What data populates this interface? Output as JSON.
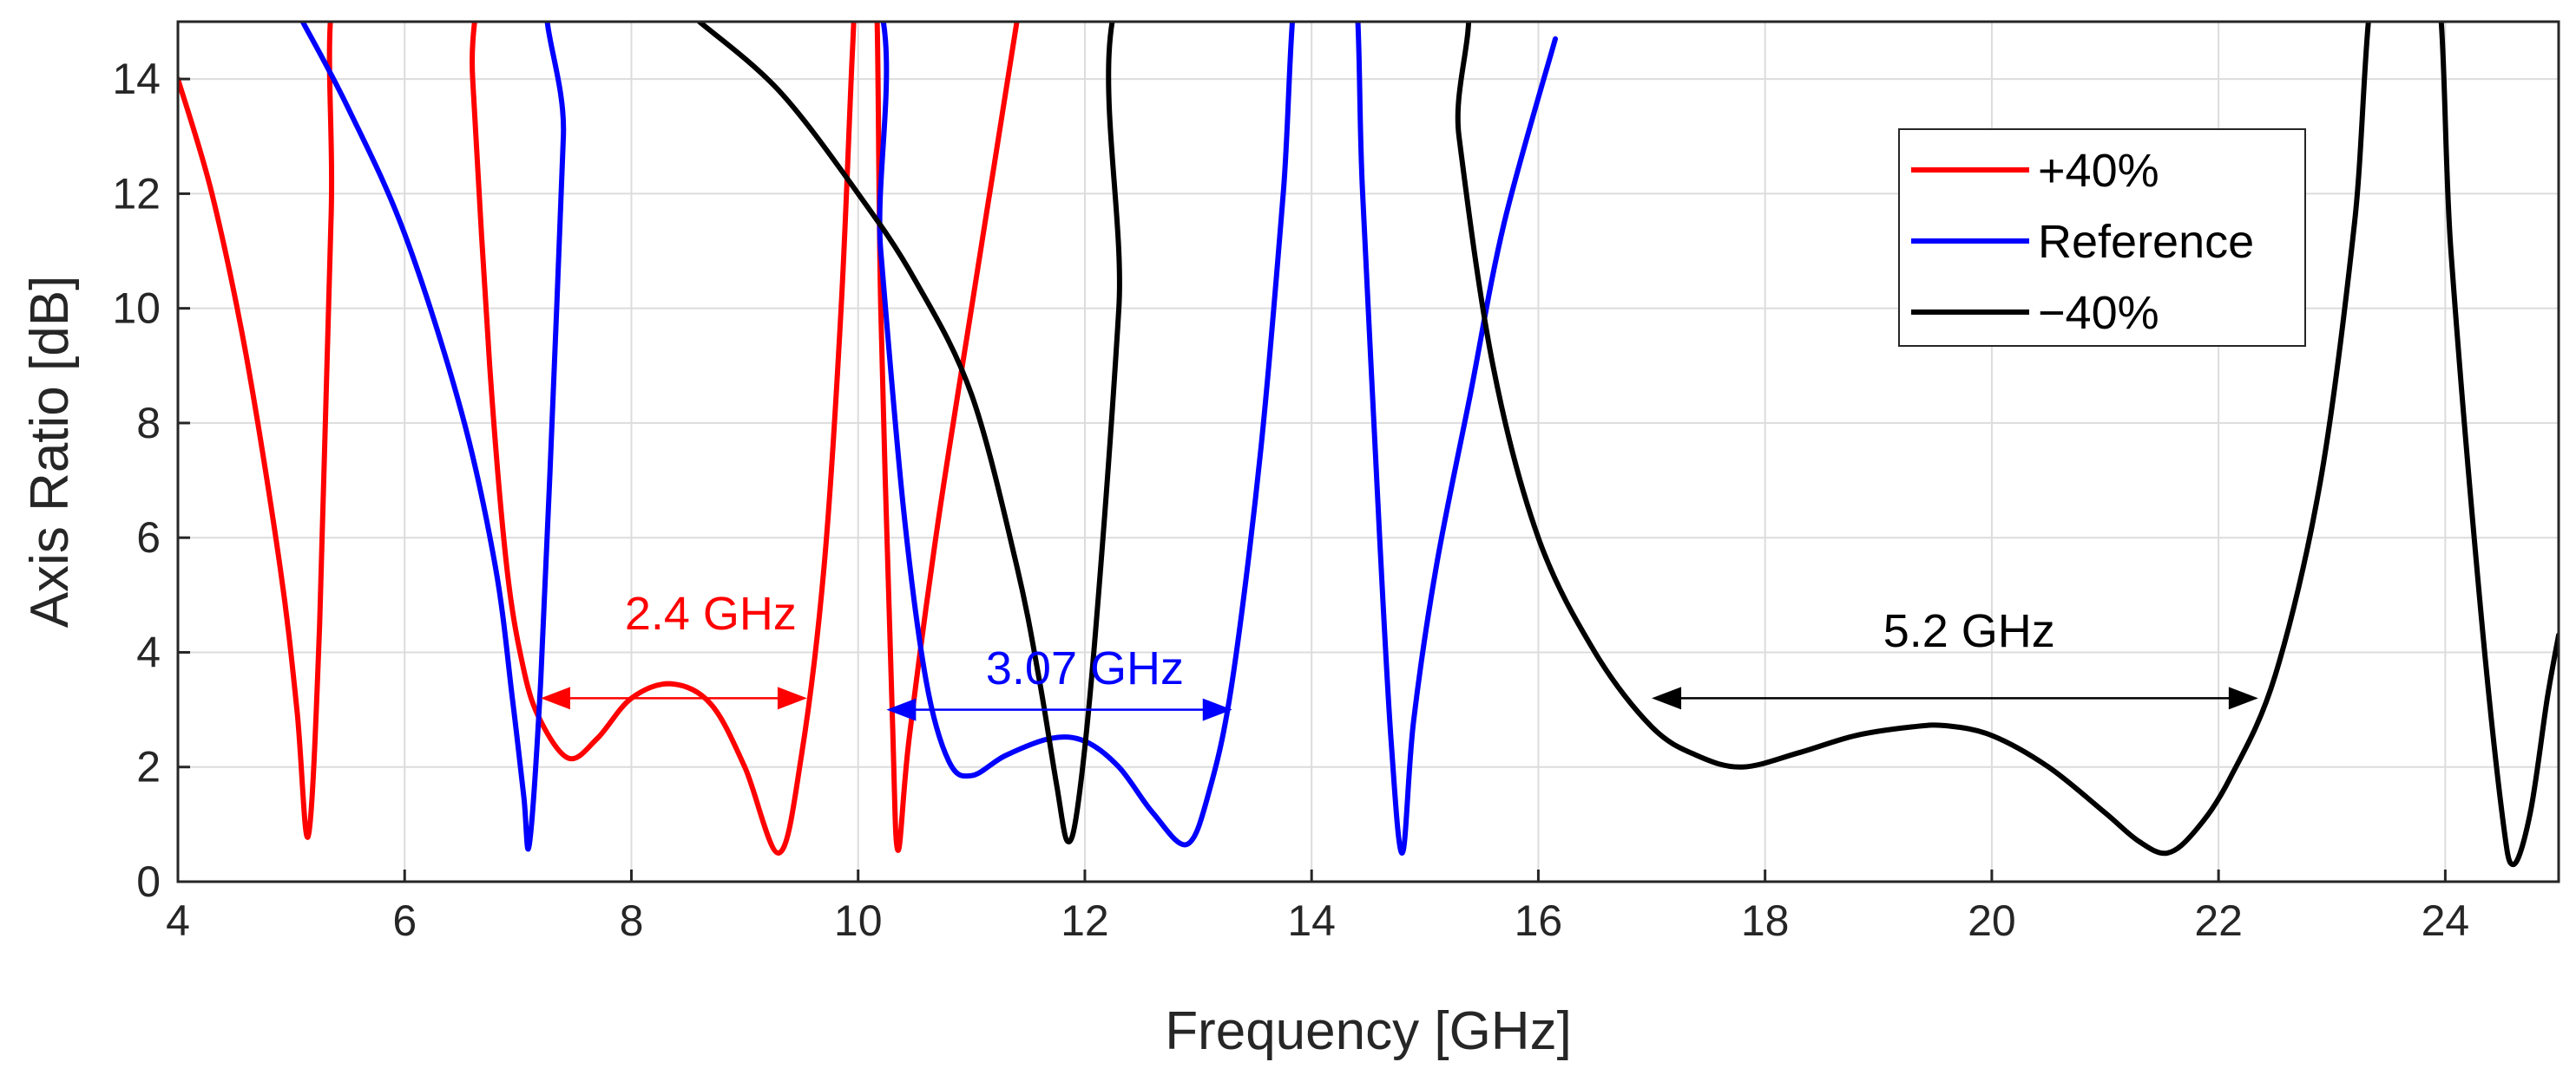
{
  "chart_data": {
    "type": "line",
    "title": "",
    "xlabel": "Frequency [GHz]",
    "ylabel": "Axis Ratio [dB]",
    "xlim": [
      4,
      25
    ],
    "ylim": [
      0,
      15
    ],
    "grid": true,
    "x_ticks": [
      "4",
      "6",
      "8",
      "10",
      "12",
      "14",
      "16",
      "18",
      "20",
      "22",
      "24"
    ],
    "y_ticks": [
      "0",
      "2",
      "4",
      "6",
      "8",
      "10",
      "12",
      "14"
    ],
    "legend_position": "top-right",
    "series": [
      {
        "name": "+40%",
        "color": "#ff0000",
        "points": [
          [
            4.0,
            14.0
          ],
          [
            4.3,
            12.0
          ],
          [
            4.6,
            9.2
          ],
          [
            4.9,
            5.5
          ],
          [
            5.05,
            3.0
          ],
          [
            5.15,
            0.8
          ],
          [
            5.25,
            4.5
          ],
          [
            5.35,
            11.5
          ],
          [
            5.45,
            16.0
          ],
          [
            6.55,
            16.0
          ],
          [
            6.6,
            14.0
          ],
          [
            6.75,
            9.0
          ],
          [
            6.9,
            5.5
          ],
          [
            7.05,
            3.7
          ],
          [
            7.2,
            2.8
          ],
          [
            7.45,
            2.15
          ],
          [
            7.7,
            2.5
          ],
          [
            8.0,
            3.2
          ],
          [
            8.35,
            3.45
          ],
          [
            8.7,
            3.1
          ],
          [
            9.0,
            2.0
          ],
          [
            9.3,
            0.5
          ],
          [
            9.5,
            2.2
          ],
          [
            9.7,
            5.5
          ],
          [
            9.85,
            10.0
          ],
          [
            9.95,
            14.5
          ],
          [
            10.0,
            16.0
          ],
          [
            10.15,
            16.0
          ],
          [
            10.2,
            10.0
          ],
          [
            10.3,
            3.0
          ],
          [
            10.35,
            0.55
          ],
          [
            10.45,
            2.5
          ],
          [
            10.7,
            6.2
          ],
          [
            11.0,
            10.0
          ],
          [
            11.2,
            12.5
          ],
          [
            11.4,
            15.0
          ]
        ]
      },
      {
        "name": "Reference",
        "color": "#0000ff",
        "points": [
          [
            5.1,
            15.0
          ],
          [
            5.5,
            13.5
          ],
          [
            6.0,
            11.3
          ],
          [
            6.5,
            8.2
          ],
          [
            6.8,
            5.5
          ],
          [
            6.95,
            3.2
          ],
          [
            7.05,
            1.5
          ],
          [
            7.1,
            0.65
          ],
          [
            7.2,
            3.5
          ],
          [
            7.3,
            8.0
          ],
          [
            7.4,
            13.0
          ],
          [
            7.45,
            16.0
          ],
          [
            10.0,
            16.0
          ],
          [
            10.2,
            11.0
          ],
          [
            10.4,
            6.5
          ],
          [
            10.6,
            3.5
          ],
          [
            10.8,
            2.1
          ],
          [
            11.0,
            1.85
          ],
          [
            11.3,
            2.2
          ],
          [
            11.7,
            2.5
          ],
          [
            12.0,
            2.45
          ],
          [
            12.3,
            2.0
          ],
          [
            12.6,
            1.2
          ],
          [
            12.9,
            0.65
          ],
          [
            13.1,
            1.6
          ],
          [
            13.3,
            3.5
          ],
          [
            13.55,
            7.5
          ],
          [
            13.75,
            12.0
          ],
          [
            13.9,
            16.0
          ],
          [
            14.35,
            16.0
          ],
          [
            14.45,
            12.0
          ],
          [
            14.6,
            6.0
          ],
          [
            14.7,
            2.5
          ],
          [
            14.8,
            0.5
          ],
          [
            14.9,
            2.8
          ],
          [
            15.1,
            5.5
          ],
          [
            15.4,
            8.5
          ],
          [
            15.7,
            11.5
          ],
          [
            16.15,
            14.7
          ]
        ]
      },
      {
        "name": "−40%",
        "color": "#000000",
        "points": [
          [
            8.6,
            15.0
          ],
          [
            9.3,
            13.8
          ],
          [
            10.0,
            12.0
          ],
          [
            10.5,
            10.5
          ],
          [
            11.0,
            8.5
          ],
          [
            11.4,
            5.5
          ],
          [
            11.6,
            3.5
          ],
          [
            11.75,
            1.7
          ],
          [
            11.85,
            0.7
          ],
          [
            11.95,
            1.5
          ],
          [
            12.1,
            4.5
          ],
          [
            12.3,
            10.0
          ],
          [
            12.45,
            16.0
          ],
          [
            15.15,
            16.0
          ],
          [
            15.3,
            13.0
          ],
          [
            15.6,
            9.0
          ],
          [
            16.0,
            6.0
          ],
          [
            16.5,
            4.0
          ],
          [
            17.0,
            2.7
          ],
          [
            17.4,
            2.2
          ],
          [
            17.8,
            2.0
          ],
          [
            18.3,
            2.25
          ],
          [
            18.8,
            2.55
          ],
          [
            19.3,
            2.7
          ],
          [
            19.6,
            2.72
          ],
          [
            20.0,
            2.55
          ],
          [
            20.5,
            2.0
          ],
          [
            21.0,
            1.2
          ],
          [
            21.3,
            0.7
          ],
          [
            21.55,
            0.5
          ],
          [
            21.8,
            0.9
          ],
          [
            22.1,
            1.8
          ],
          [
            22.5,
            3.6
          ],
          [
            22.9,
            7.0
          ],
          [
            23.2,
            11.5
          ],
          [
            23.4,
            16.0
          ],
          [
            23.9,
            16.0
          ],
          [
            24.05,
            11.0
          ],
          [
            24.3,
            5.0
          ],
          [
            24.5,
            1.2
          ],
          [
            24.6,
            0.3
          ],
          [
            24.75,
            1.2
          ],
          [
            24.9,
            3.2
          ],
          [
            25.0,
            4.3
          ]
        ]
      }
    ],
    "annotations": [
      {
        "text": "2.4 GHz",
        "color": "#ff0000",
        "x1": 7.2,
        "x2": 9.55,
        "y": 3.2,
        "label_x": 8.7,
        "label_y": 4.4
      },
      {
        "text": "3.07 GHz",
        "color": "#0000ff",
        "x1": 10.25,
        "x2": 13.3,
        "y": 3.0,
        "label_x": 12.0,
        "label_y": 3.45
      },
      {
        "text": "5.2 GHz",
        "color": "#000000",
        "x1": 17.0,
        "x2": 22.35,
        "y": 3.2,
        "label_x": 19.8,
        "label_y": 4.1
      }
    ]
  }
}
